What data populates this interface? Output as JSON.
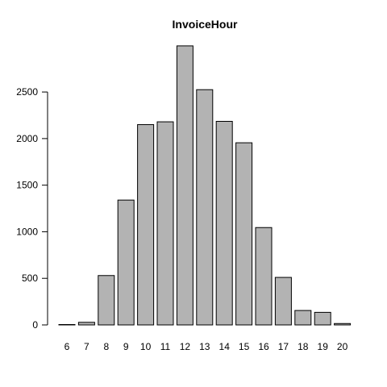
{
  "chart_data": {
    "type": "bar",
    "title": "InvoiceHour",
    "xlabel": "",
    "ylabel": "",
    "categories": [
      "6",
      "7",
      "8",
      "9",
      "10",
      "11",
      "12",
      "13",
      "14",
      "15",
      "16",
      "17",
      "18",
      "19",
      "20"
    ],
    "values": [
      2,
      28,
      530,
      1340,
      2150,
      2180,
      2995,
      2525,
      2185,
      1955,
      1045,
      510,
      155,
      135,
      15
    ],
    "ylim": [
      0,
      3000
    ],
    "yticks": [
      0,
      500,
      1000,
      1500,
      2000,
      2500
    ],
    "grid": false,
    "legend": "none",
    "colors": {
      "bar_fill": "#b3b3b3",
      "bar_stroke": "#000000"
    }
  }
}
